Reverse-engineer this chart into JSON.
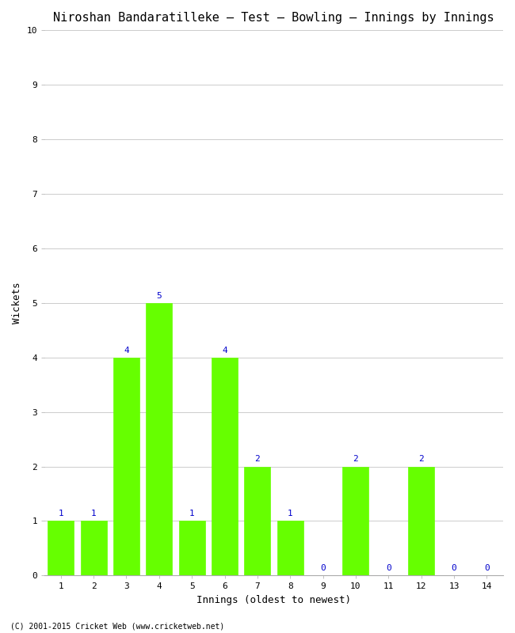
{
  "title": "Niroshan Bandaratilleke – Test – Bowling – Innings by Innings",
  "xlabel": "Innings (oldest to newest)",
  "ylabel": "Wickets",
  "categories": [
    1,
    2,
    3,
    4,
    5,
    6,
    7,
    8,
    9,
    10,
    11,
    12,
    13,
    14
  ],
  "values": [
    1,
    1,
    4,
    5,
    1,
    4,
    2,
    1,
    0,
    2,
    0,
    2,
    0,
    0
  ],
  "bar_color": "#66ff00",
  "bar_edge_color": "#66ff00",
  "label_color": "#0000cc",
  "ylim": [
    0,
    10
  ],
  "yticks": [
    0,
    1,
    2,
    3,
    4,
    5,
    6,
    7,
    8,
    9,
    10
  ],
  "background_color": "#ffffff",
  "grid_color": "#cccccc",
  "title_fontsize": 11,
  "axis_label_fontsize": 9,
  "tick_fontsize": 8,
  "value_label_fontsize": 8,
  "footer": "(C) 2001-2015 Cricket Web (www.cricketweb.net)"
}
